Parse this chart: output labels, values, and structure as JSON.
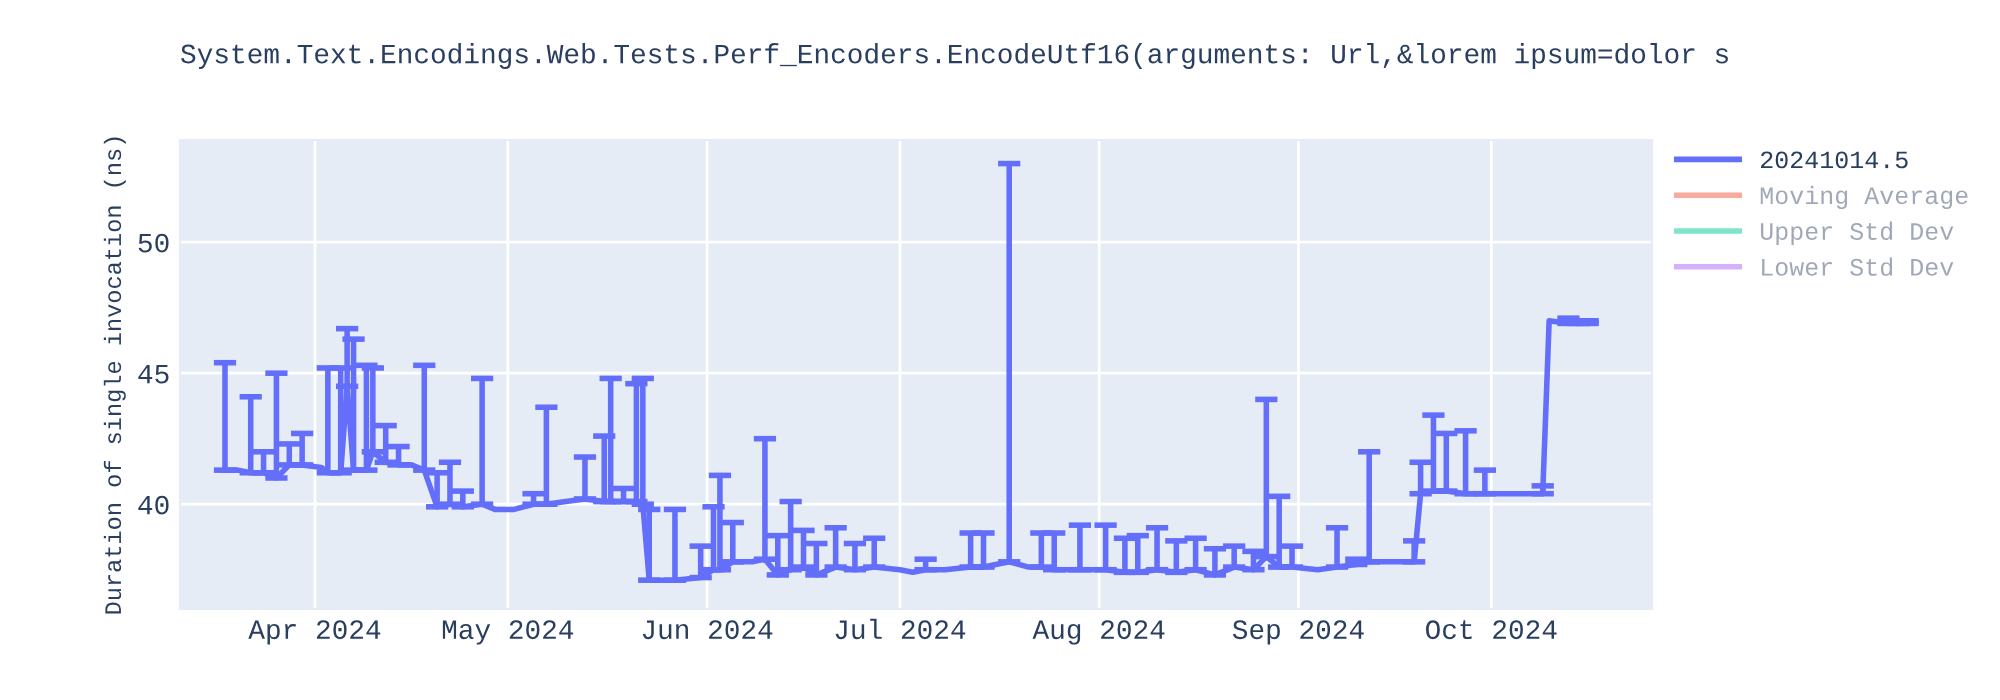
{
  "chart_data": {
    "type": "line",
    "title": "System.Text.Encodings.Web.Tests.Perf_Encoders.EncodeUtf16(arguments: Url,&lorem ipsum=dolor s",
    "ylabel": "Duration of single invocation (ns)",
    "x": [
      "2024-03-18",
      "2024-03-20",
      "2024-03-22",
      "2024-03-24",
      "2024-03-26",
      "2024-03-28",
      "2024-03-30",
      "2024-04-02",
      "2024-04-03",
      "2024-04-05",
      "2024-04-06",
      "2024-04-07",
      "2024-04-09",
      "2024-04-10",
      "2024-04-12",
      "2024-04-14",
      "2024-04-16",
      "2024-04-18",
      "2024-04-20",
      "2024-04-22",
      "2024-04-24",
      "2024-04-27",
      "2024-04-29",
      "2024-05-02",
      "2024-05-05",
      "2024-05-07",
      "2024-05-10",
      "2024-05-13",
      "2024-05-16",
      "2024-05-17",
      "2024-05-19",
      "2024-05-21",
      "2024-05-22",
      "2024-05-23",
      "2024-05-27",
      "2024-05-31",
      "2024-06-02",
      "2024-06-03",
      "2024-06-05",
      "2024-06-08",
      "2024-06-10",
      "2024-06-12",
      "2024-06-14",
      "2024-06-16",
      "2024-06-18",
      "2024-06-21",
      "2024-06-24",
      "2024-06-27",
      "2024-07-01",
      "2024-07-03",
      "2024-07-05",
      "2024-07-08",
      "2024-07-12",
      "2024-07-14",
      "2024-07-18",
      "2024-07-21",
      "2024-07-23",
      "2024-07-25",
      "2024-07-29",
      "2024-08-02",
      "2024-08-05",
      "2024-08-07",
      "2024-08-10",
      "2024-08-13",
      "2024-08-16",
      "2024-08-19",
      "2024-08-22",
      "2024-08-25",
      "2024-08-27",
      "2024-08-29",
      "2024-08-31",
      "2024-09-04",
      "2024-09-07",
      "2024-09-10",
      "2024-09-12",
      "2024-09-16",
      "2024-09-19",
      "2024-09-20",
      "2024-09-22",
      "2024-09-24",
      "2024-09-27",
      "2024-09-30",
      "2024-10-05",
      "2024-10-09",
      "2024-10-10",
      "2024-10-13",
      "2024-10-16"
    ],
    "series": [
      {
        "name": "20241014.5",
        "color": "#636efa",
        "values": [
          41.3,
          41.3,
          41.2,
          41.2,
          41.0,
          41.5,
          41.5,
          41.4,
          41.2,
          41.2,
          44.5,
          41.3,
          41.3,
          42.0,
          41.6,
          41.5,
          41.5,
          41.3,
          39.9,
          40.0,
          39.9,
          40.0,
          39.8,
          39.8,
          40.0,
          40.0,
          40.1,
          40.2,
          40.1,
          40.1,
          40.1,
          40.1,
          40.0,
          37.1,
          37.1,
          37.2,
          37.5,
          37.5,
          37.8,
          37.8,
          37.9,
          37.3,
          37.5,
          37.6,
          37.3,
          37.6,
          37.5,
          37.6,
          37.5,
          37.4,
          37.5,
          37.5,
          37.6,
          37.6,
          37.8,
          37.6,
          37.6,
          37.5,
          37.5,
          37.5,
          37.4,
          37.4,
          37.5,
          37.4,
          37.5,
          37.3,
          37.6,
          37.5,
          38.0,
          37.6,
          37.6,
          37.5,
          37.6,
          37.7,
          37.8,
          37.8,
          37.8,
          40.4,
          40.5,
          40.5,
          40.4,
          40.4,
          40.4,
          40.4,
          47.0,
          46.9,
          46.9
        ],
        "errors": [
          [
            41.3,
            45.4
          ],
          null,
          [
            41.2,
            44.1
          ],
          [
            41.2,
            42.0
          ],
          [
            41.0,
            45.0
          ],
          [
            41.5,
            42.3
          ],
          [
            41.5,
            42.7
          ],
          null,
          [
            41.2,
            45.2
          ],
          [
            41.2,
            45.2
          ],
          [
            44.5,
            46.7
          ],
          [
            41.3,
            46.3
          ],
          [
            41.3,
            45.3
          ],
          [
            42.0,
            45.2
          ],
          [
            41.6,
            43.0
          ],
          [
            41.5,
            42.2
          ],
          null,
          [
            41.3,
            45.3
          ],
          [
            39.9,
            41.2
          ],
          [
            40.0,
            41.6
          ],
          [
            39.9,
            40.5
          ],
          [
            40.0,
            44.8
          ],
          null,
          null,
          [
            40.0,
            40.4
          ],
          [
            40.0,
            43.7
          ],
          null,
          [
            40.2,
            41.8
          ],
          [
            40.1,
            42.6
          ],
          [
            40.1,
            44.8
          ],
          [
            40.1,
            40.6
          ],
          [
            40.1,
            44.6
          ],
          [
            40.0,
            44.8
          ],
          [
            37.1,
            39.8
          ],
          [
            37.1,
            39.8
          ],
          [
            37.2,
            38.4
          ],
          [
            37.5,
            39.9
          ],
          [
            37.5,
            41.1
          ],
          [
            37.8,
            39.3
          ],
          null,
          [
            37.9,
            42.5
          ],
          [
            37.3,
            38.8
          ],
          [
            37.5,
            40.1
          ],
          [
            37.6,
            39.0
          ],
          [
            37.3,
            38.5
          ],
          [
            37.6,
            39.1
          ],
          [
            37.5,
            38.5
          ],
          [
            37.6,
            38.7
          ],
          null,
          null,
          [
            37.5,
            37.9
          ],
          null,
          [
            37.6,
            38.9
          ],
          [
            37.6,
            38.9
          ],
          [
            37.8,
            53.0
          ],
          null,
          [
            37.6,
            38.9
          ],
          [
            37.5,
            38.9
          ],
          [
            37.5,
            39.2
          ],
          [
            37.5,
            39.2
          ],
          [
            37.4,
            38.7
          ],
          [
            37.4,
            38.8
          ],
          [
            37.5,
            39.1
          ],
          [
            37.4,
            38.6
          ],
          [
            37.5,
            38.7
          ],
          [
            37.3,
            38.3
          ],
          [
            37.6,
            38.4
          ],
          [
            37.5,
            38.2
          ],
          [
            38.0,
            44.0
          ],
          [
            37.6,
            40.3
          ],
          [
            37.6,
            38.4
          ],
          null,
          [
            37.6,
            39.1
          ],
          [
            37.7,
            37.9
          ],
          [
            37.8,
            42.0
          ],
          null,
          [
            37.8,
            38.6
          ],
          [
            40.4,
            41.6
          ],
          [
            40.5,
            43.4
          ],
          [
            40.5,
            42.7
          ],
          [
            40.4,
            42.8
          ],
          [
            40.4,
            41.3
          ],
          null,
          [
            40.4,
            40.7
          ],
          null,
          [
            46.9,
            47.1
          ],
          [
            46.9,
            47.0
          ]
        ]
      },
      {
        "name": "Moving Average",
        "color": "#ef553b",
        "values": [
          null,
          null,
          null,
          null,
          null,
          null,
          null,
          null,
          null,
          null,
          null,
          null,
          null,
          null,
          null,
          null,
          null,
          null,
          null,
          null,
          null,
          null,
          null,
          null,
          null,
          null,
          null,
          null,
          null,
          null,
          null,
          null,
          null,
          null,
          null,
          null,
          null,
          null,
          null,
          null,
          null,
          null,
          null,
          null,
          null,
          null,
          null,
          null,
          null,
          null,
          null,
          null,
          null,
          null,
          null,
          null,
          null,
          null,
          null,
          null,
          null,
          null,
          null,
          null,
          null,
          null,
          null,
          null,
          null,
          null,
          null,
          null,
          null,
          null,
          null,
          null,
          null,
          null,
          null,
          null,
          null,
          null,
          null,
          null,
          null,
          null,
          null
        ]
      },
      {
        "name": "Upper Std Dev",
        "color": "#00cc96",
        "values": [
          null,
          null,
          null,
          null,
          null,
          null,
          null,
          null,
          null,
          null,
          null,
          null,
          null,
          null,
          null,
          null,
          null,
          null,
          null,
          null,
          null,
          null,
          null,
          null,
          null,
          null,
          null,
          null,
          null,
          null,
          null,
          null,
          null,
          null,
          null,
          null,
          null,
          null,
          null,
          null,
          null,
          null,
          null,
          null,
          null,
          null,
          null,
          null,
          null,
          null,
          null,
          null,
          null,
          null,
          null,
          null,
          null,
          null,
          null,
          null,
          null,
          null,
          null,
          null,
          null,
          null,
          null,
          null,
          null,
          null,
          null,
          null,
          null,
          null,
          null,
          null,
          null,
          null,
          null,
          null,
          null,
          null,
          null,
          null,
          null,
          null,
          null
        ]
      },
      {
        "name": "Lower Std Dev",
        "color": "#ab63fa",
        "values": [
          null,
          null,
          null,
          null,
          null,
          null,
          null,
          null,
          null,
          null,
          null,
          null,
          null,
          null,
          null,
          null,
          null,
          null,
          null,
          null,
          null,
          null,
          null,
          null,
          null,
          null,
          null,
          null,
          null,
          null,
          null,
          null,
          null,
          null,
          null,
          null,
          null,
          null,
          null,
          null,
          null,
          null,
          null,
          null,
          null,
          null,
          null,
          null,
          null,
          null,
          null,
          null,
          null,
          null,
          null,
          null,
          null,
          null,
          null,
          null,
          null,
          null,
          null,
          null,
          null,
          null,
          null,
          null,
          null,
          null,
          null,
          null,
          null,
          null,
          null,
          null,
          null,
          null,
          null,
          null,
          null,
          null,
          null,
          null,
          null,
          null,
          null
        ]
      }
    ],
    "xlim": [
      "2024-03-11",
      "2024-10-26"
    ],
    "xticks": [
      {
        "value": "2024-04-01",
        "label": "Apr 2024"
      },
      {
        "value": "2024-05-01",
        "label": "May 2024"
      },
      {
        "value": "2024-06-01",
        "label": "Jun 2024"
      },
      {
        "value": "2024-07-01",
        "label": "Jul 2024"
      },
      {
        "value": "2024-08-01",
        "label": "Aug 2024"
      },
      {
        "value": "2024-09-01",
        "label": "Sep 2024"
      },
      {
        "value": "2024-10-01",
        "label": "Oct 2024"
      }
    ],
    "ylim": [
      36,
      53.9
    ],
    "yticks": [
      40,
      45,
      50
    ],
    "grid": true,
    "legend": "top right",
    "marker": "none",
    "line_style": "solid"
  }
}
